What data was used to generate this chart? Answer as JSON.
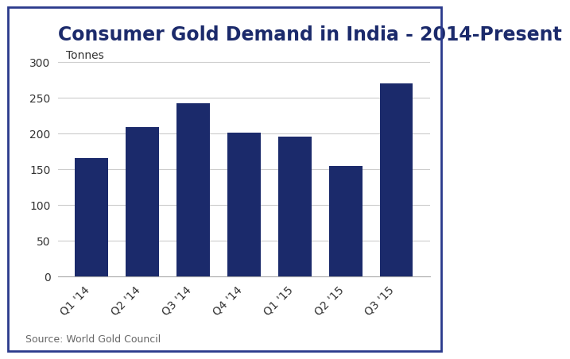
{
  "title": "Consumer Gold Demand in India - 2014-Present",
  "ylabel_text": "Tonnes",
  "categories": [
    "Q1 '14",
    "Q2 '14",
    "Q3 '14",
    "Q4 '14",
    "Q1 '15",
    "Q2 '15",
    "Q3 '15"
  ],
  "values": [
    165,
    208,
    242,
    201,
    195,
    154,
    270
  ],
  "bar_color": "#1b2a6b",
  "background_color": "#ffffff",
  "plot_bg_color": "#ffffff",
  "yticks": [
    0,
    50,
    100,
    150,
    200,
    250,
    300
  ],
  "ylim": [
    0,
    315
  ],
  "source_text": "Source: World Gold Council",
  "title_fontsize": 17,
  "ylabel_fontsize": 10,
  "tick_fontsize": 10,
  "source_fontsize": 9,
  "border_color": "#2a3a8c",
  "grid_color": "#cccccc",
  "title_color": "#1b2a6b"
}
